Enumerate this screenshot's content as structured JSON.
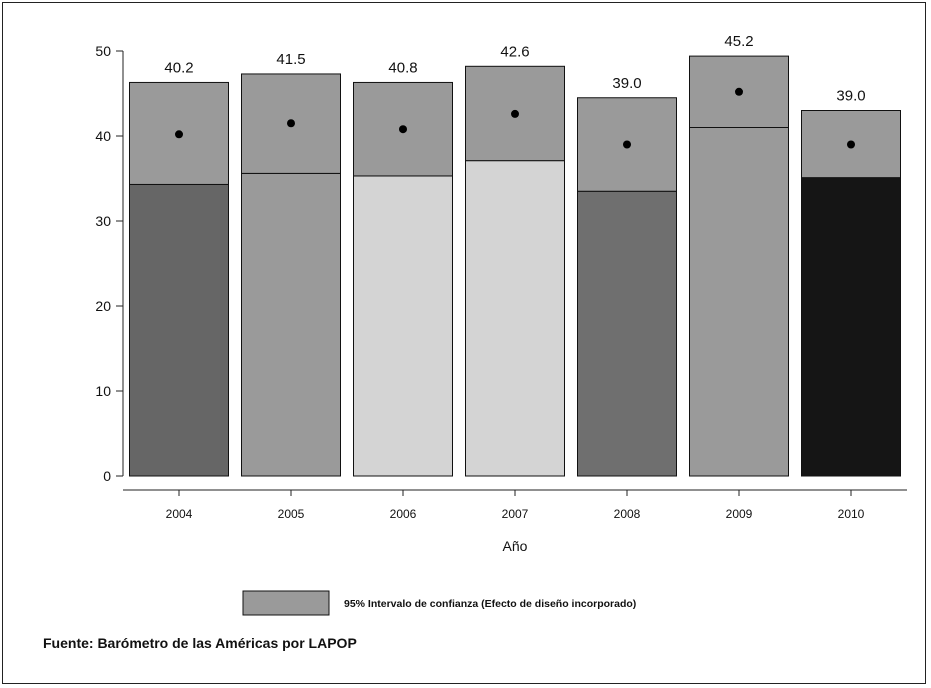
{
  "chart_data": {
    "type": "bar",
    "categories": [
      "2004",
      "2005",
      "2006",
      "2007",
      "2008",
      "2009",
      "2010"
    ],
    "values": [
      40.2,
      41.5,
      40.8,
      42.6,
      39.0,
      45.2,
      39.0
    ],
    "value_labels": [
      "40.2",
      "41.5",
      "40.8",
      "42.6",
      "39.0",
      "45.2",
      "39.0"
    ],
    "ci_lower": [
      34.3,
      35.6,
      35.3,
      37.1,
      33.5,
      41.0,
      35.1
    ],
    "ci_upper": [
      46.3,
      47.3,
      46.3,
      48.2,
      44.5,
      49.4,
      43.0
    ],
    "bar_colors": [
      "#666666",
      "#9a9a9a",
      "#d4d4d4",
      "#d4d4d4",
      "#6f6f6f",
      "#9a9a9a",
      "#151515"
    ],
    "ci_color": "#9a9a9a",
    "title": "",
    "xlabel": "Año",
    "ylabel": "",
    "ylim": [
      0,
      50
    ],
    "yticks": [
      0,
      10,
      20,
      30,
      40,
      50
    ],
    "grid": false,
    "legend": {
      "label": "95% Intervalo de confianza (Efecto de diseño incorporado)",
      "placement": "bottom-center"
    }
  },
  "source": "Fuente: Barómetro de las Américas por LAPOP"
}
